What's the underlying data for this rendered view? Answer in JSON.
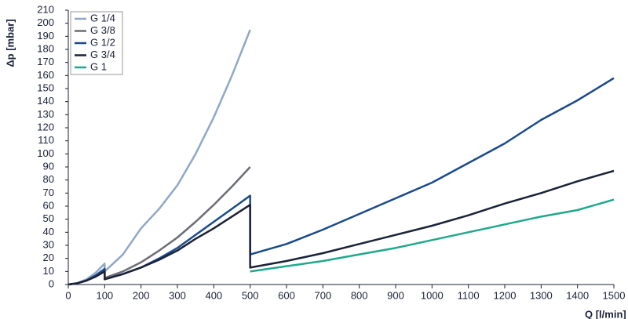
{
  "chart_data": {
    "type": "line",
    "y_label": "Δp [mbar]",
    "x_label": "Q  [l/min]",
    "x": [
      0,
      25,
      50,
      75,
      100,
      100,
      150,
      200,
      250,
      300,
      350,
      400,
      450,
      500,
      500,
      600,
      700,
      800,
      900,
      1000,
      1100,
      1200,
      1300,
      1400,
      1500
    ],
    "series": [
      {
        "name": "G 1/4",
        "color": "#8fa7c9",
        "values": [
          0,
          1,
          4,
          9,
          16,
          10,
          23,
          43,
          58,
          76,
          100,
          128,
          160,
          195,
          null,
          null,
          null,
          null,
          null,
          null,
          null,
          null,
          null,
          null,
          null
        ]
      },
      {
        "name": "G 3/8",
        "color": "#6b6e74",
        "values": [
          0,
          1,
          3,
          6,
          11,
          5,
          10,
          17,
          26,
          36,
          48,
          61,
          75,
          90,
          null,
          null,
          null,
          null,
          null,
          null,
          null,
          null,
          null,
          null,
          null
        ]
      },
      {
        "name": "G 1/2",
        "color": "#1a4a8a",
        "values": [
          0,
          1,
          3,
          7,
          12,
          4,
          8,
          13,
          20,
          28,
          38,
          48,
          58,
          68,
          23,
          31,
          42,
          54,
          66,
          78,
          93,
          108,
          126,
          141,
          158
        ]
      },
      {
        "name": "G 3/4",
        "color": "#1b2238",
        "values": [
          0,
          1,
          3,
          6,
          10,
          4,
          8,
          13,
          19,
          26,
          35,
          43,
          52,
          61,
          13,
          18,
          24,
          31,
          38,
          45,
          53,
          62,
          70,
          79,
          87
        ]
      },
      {
        "name": "G 1",
        "color": "#1fa88e",
        "values": [
          null,
          null,
          null,
          null,
          null,
          null,
          null,
          null,
          null,
          null,
          null,
          null,
          null,
          null,
          10,
          14,
          18,
          23,
          28,
          34,
          40,
          46,
          52,
          57,
          65
        ]
      }
    ],
    "xlim": [
      0,
      1500
    ],
    "xticks": [
      0,
      100,
      200,
      300,
      400,
      500,
      600,
      700,
      800,
      900,
      1000,
      1100,
      1200,
      1300,
      1400,
      1500
    ],
    "ylim": [
      0,
      210
    ],
    "yticks": [
      0,
      10,
      20,
      30,
      40,
      50,
      60,
      70,
      80,
      90,
      100,
      110,
      120,
      130,
      140,
      150,
      160,
      170,
      180,
      190,
      200,
      210
    ],
    "legend": "top-left"
  }
}
